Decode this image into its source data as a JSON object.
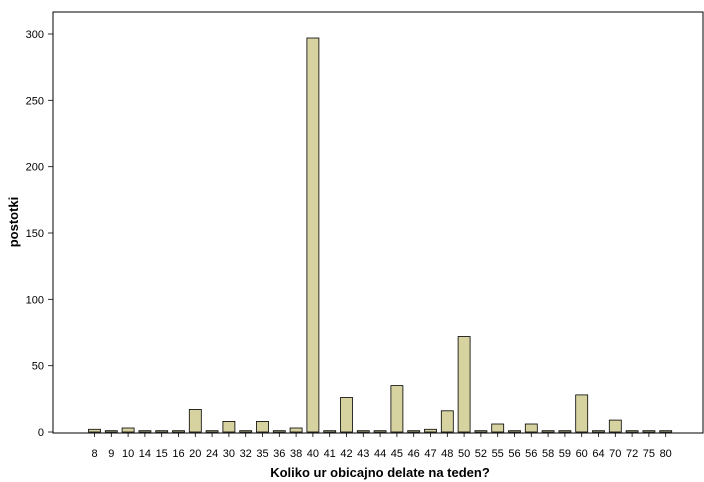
{
  "chart_data": {
    "type": "bar",
    "xlabel": "Koliko ur obicajno delate na teden?",
    "ylabel": "postotki",
    "ylim": [
      0,
      320
    ],
    "yticks": [
      0,
      50,
      100,
      150,
      200,
      250,
      300
    ],
    "grid": false,
    "bar_color": "#d6d3a1",
    "categories": [
      "8",
      "9",
      "10",
      "14",
      "15",
      "16",
      "20",
      "24",
      "30",
      "32",
      "35",
      "36",
      "38",
      "40",
      "41",
      "42",
      "43",
      "44",
      "45",
      "46",
      "47",
      "48",
      "50",
      "52",
      "55",
      "56",
      "56",
      "58",
      "59",
      "60",
      "64",
      "70",
      "72",
      "75",
      "80"
    ],
    "values": [
      2,
      1,
      3,
      1,
      1,
      1,
      17,
      1,
      8,
      1,
      8,
      1,
      3,
      297,
      1,
      26,
      1,
      1,
      35,
      1,
      2,
      16,
      72,
      1,
      6,
      1,
      6,
      1,
      1,
      28,
      1,
      9,
      1,
      1,
      1
    ]
  }
}
